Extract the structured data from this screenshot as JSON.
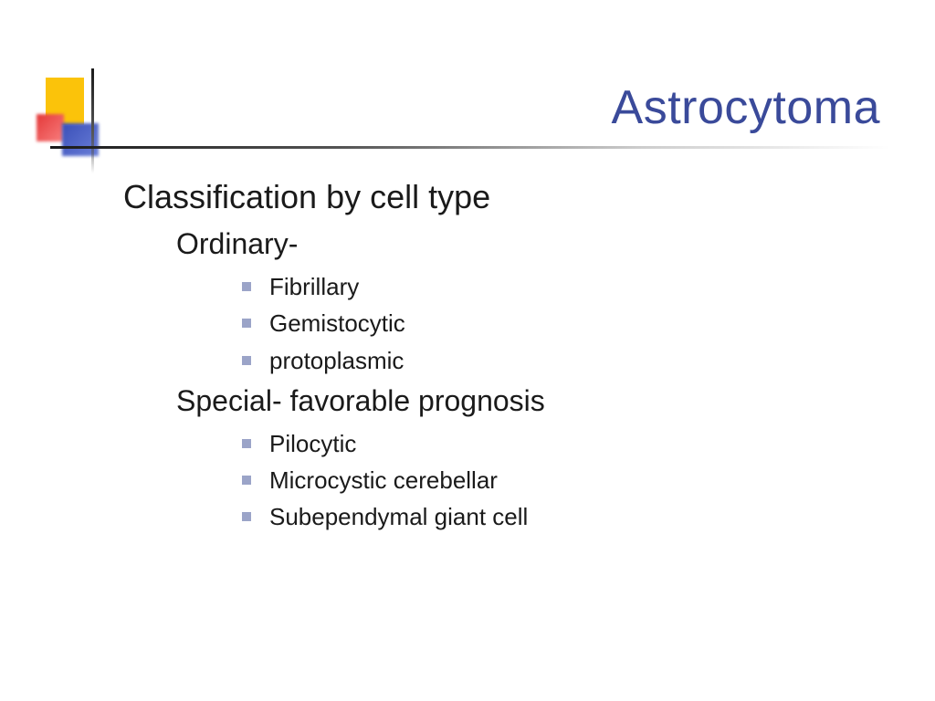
{
  "slide": {
    "title": "Astrocytoma",
    "title_color": "#3a4a9a",
    "heading": "Classification by cell type",
    "groups": [
      {
        "label": "Ordinary-",
        "items": [
          "Fibrillary",
          "Gemistocytic",
          "protoplasmic"
        ]
      },
      {
        "label": "Special- favorable prognosis",
        "items": [
          "Pilocytic",
          "Microcystic cerebellar",
          "Subependymal giant cell"
        ]
      }
    ],
    "bullet_color": "#9ba4c8",
    "decoration_colors": {
      "yellow": "#fbc30a",
      "red": "#e43838",
      "blue": "#3a4fb8"
    }
  }
}
